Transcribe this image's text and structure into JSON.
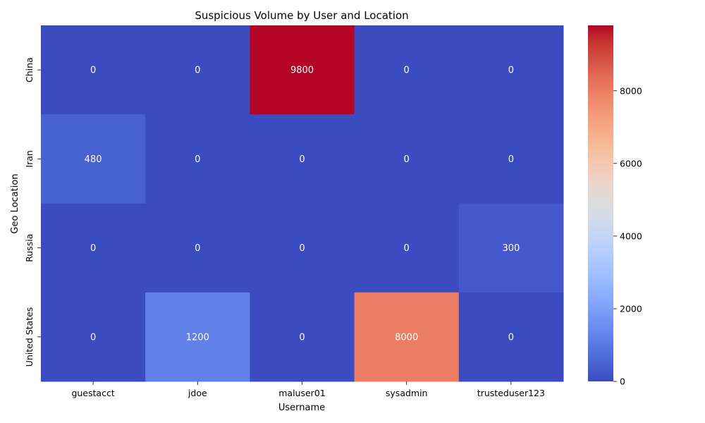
{
  "chart_data": {
    "type": "heatmap",
    "title": "Suspicious Volume by User and Location",
    "xlabel": "Username",
    "ylabel": "Geo Location",
    "x_categories": [
      "guestacct",
      "jdoe",
      "maluser01",
      "sysadmin",
      "trusteduser123"
    ],
    "y_categories": [
      "China",
      "Iran",
      "Russia",
      "United States"
    ],
    "values": [
      [
        0,
        0,
        9800,
        0,
        0
      ],
      [
        480,
        0,
        0,
        0,
        0
      ],
      [
        0,
        0,
        0,
        0,
        300
      ],
      [
        0,
        1200,
        0,
        8000,
        0
      ]
    ],
    "colormap": "coolwarm",
    "value_range": [
      0,
      9800
    ],
    "colorbar_ticks": [
      0,
      2000,
      4000,
      6000,
      8000
    ]
  }
}
